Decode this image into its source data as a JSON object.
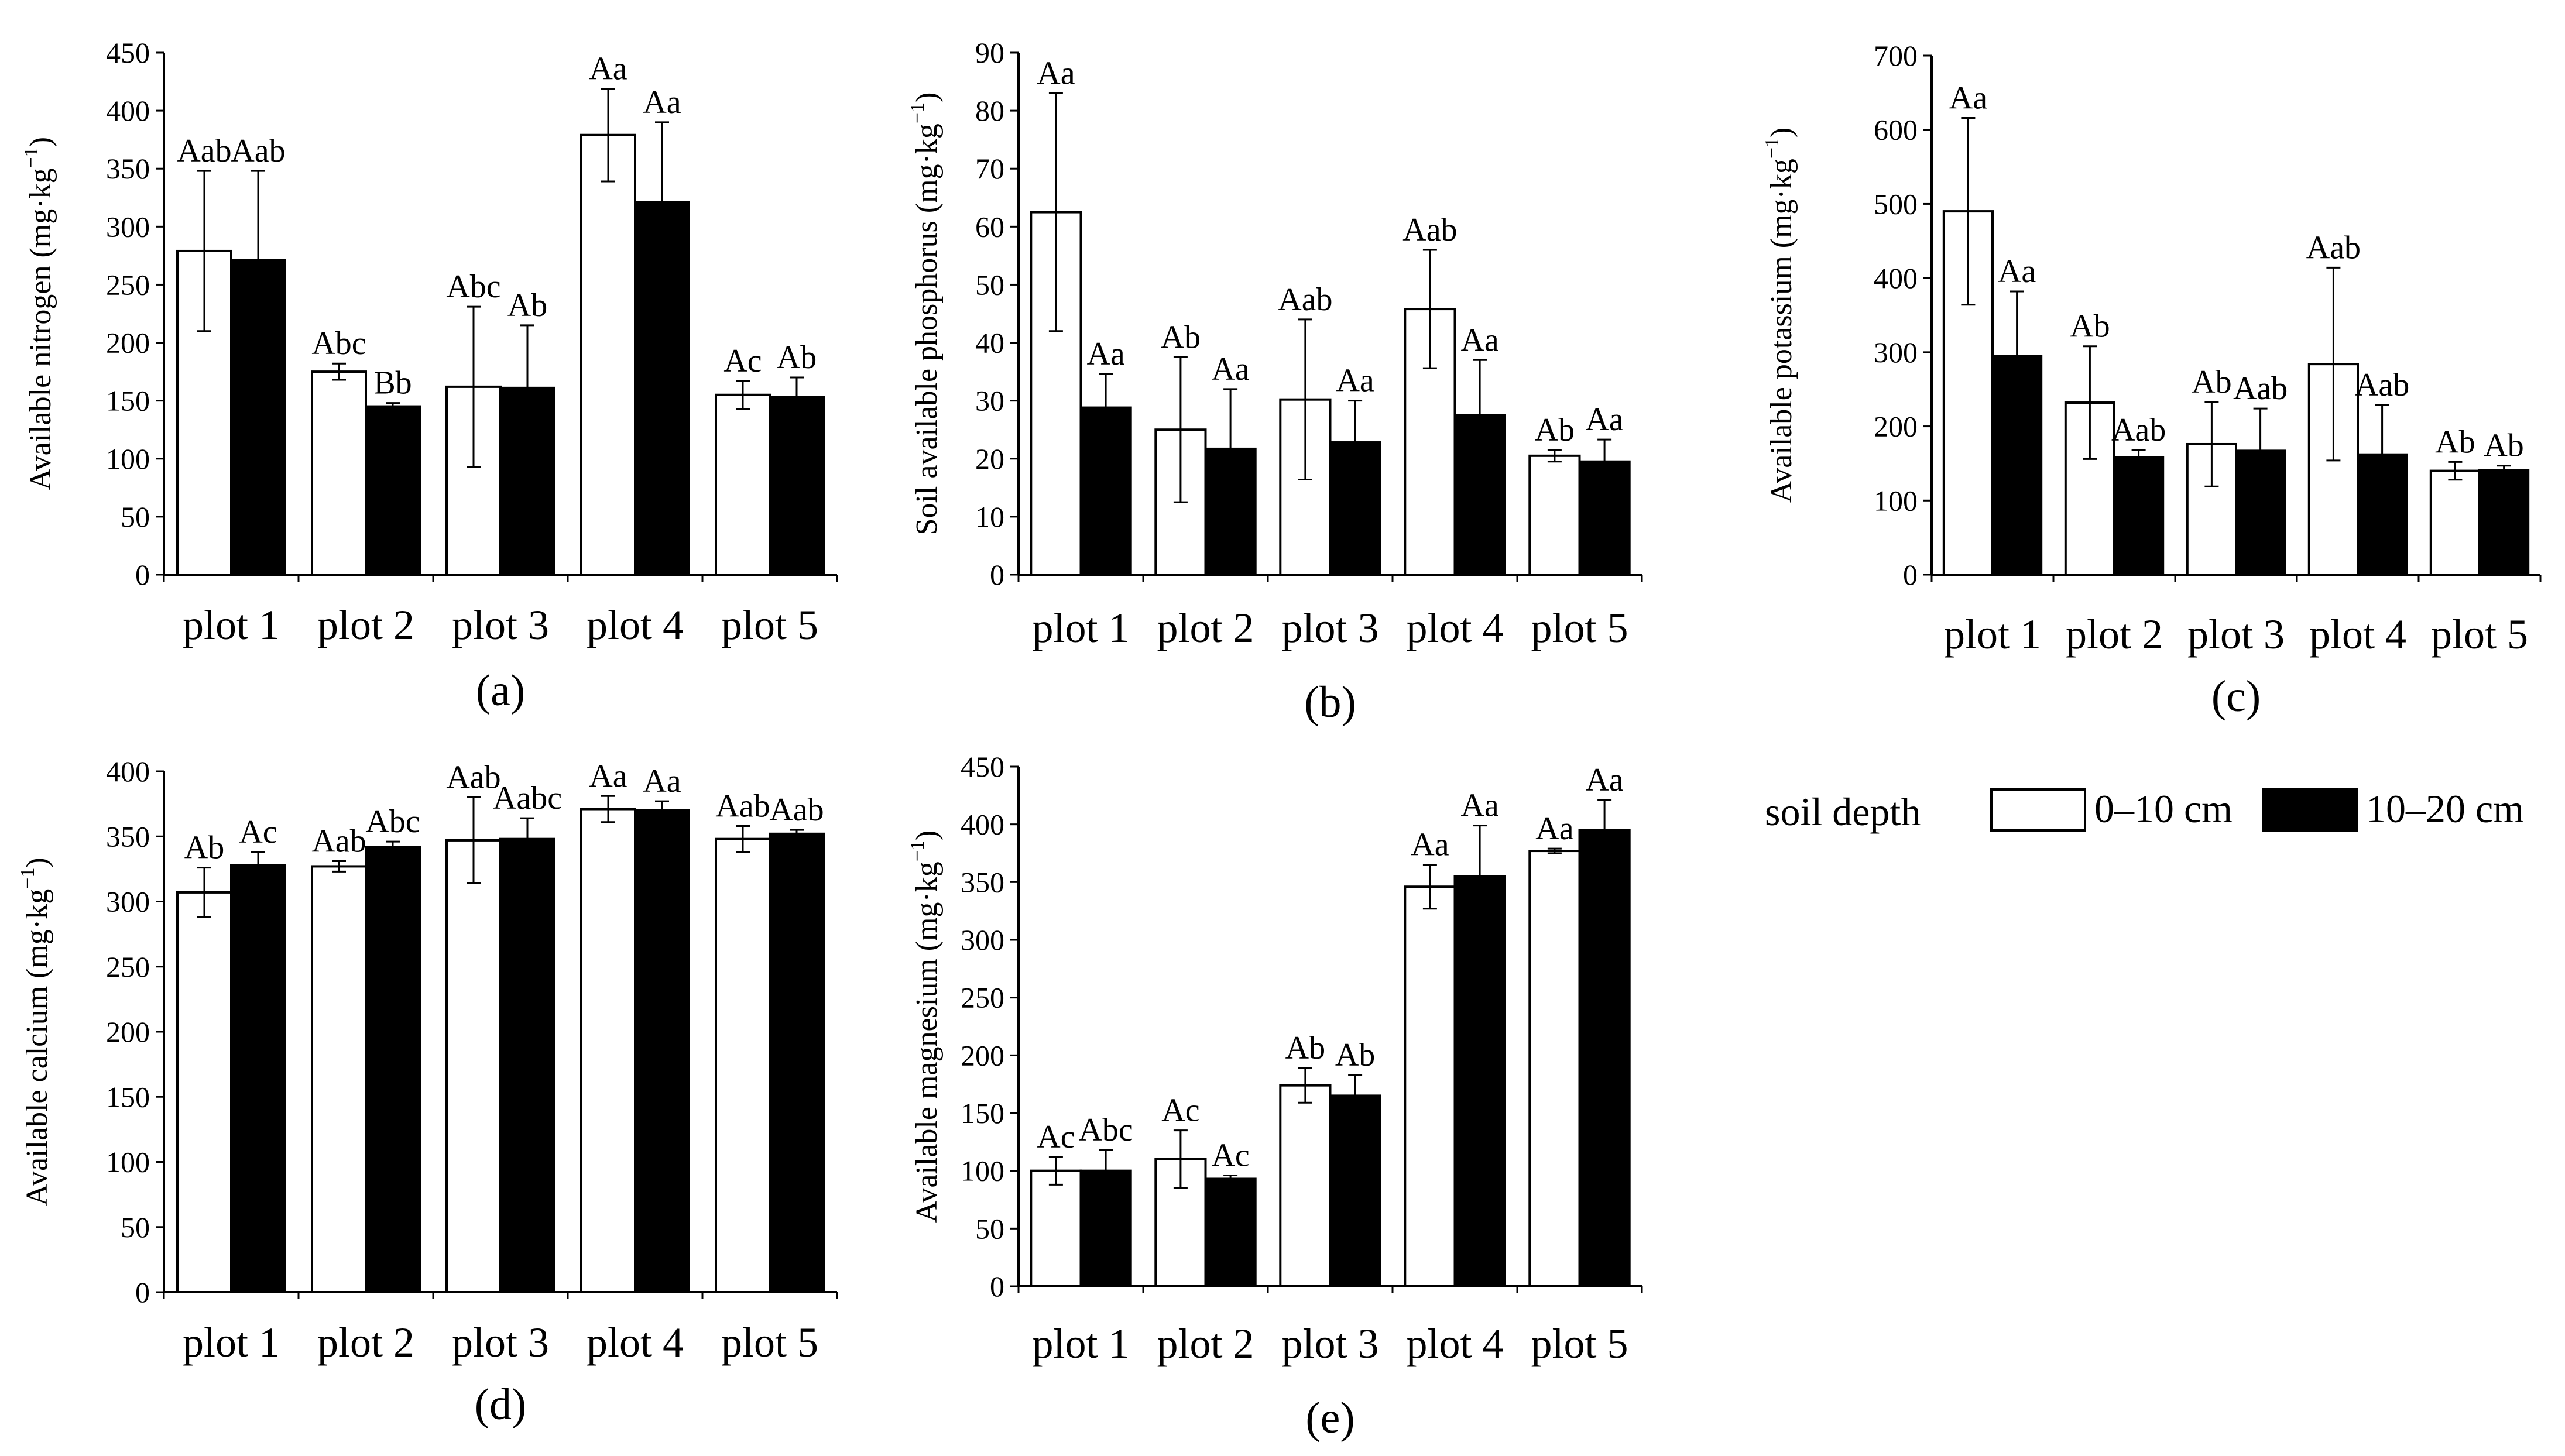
{
  "legend": {
    "title": "soil depth",
    "entries": [
      {
        "label": "0–10 cm",
        "color": "#ffffff"
      },
      {
        "label": "10–20 cm",
        "color": "#000000"
      }
    ]
  },
  "chart_data": [
    {
      "type": "bar",
      "panel": "(a)",
      "ylabel": "Available nitrogen (mg·kg",
      "ylabel_exp": "−1",
      "ylim": [
        0,
        450
      ],
      "yticks": [
        0,
        50,
        100,
        150,
        200,
        250,
        300,
        350,
        400,
        450
      ],
      "categories": [
        "plot 1",
        "plot 2",
        "plot 3",
        "plot 4",
        "plot 5"
      ],
      "series": [
        {
          "name": "0–10 cm",
          "color": "#ffffff",
          "values": [
            279,
            175,
            162,
            379,
            155
          ],
          "errors": [
            69,
            7,
            69,
            40,
            12
          ],
          "labels": [
            "Aab",
            "Abc",
            "Abc",
            "Aa",
            "Ac"
          ]
        },
        {
          "name": "10–20 cm",
          "color": "#000000",
          "values": [
            271,
            145,
            161,
            321,
            153
          ],
          "errors": [
            77,
            3,
            54,
            69,
            17
          ],
          "labels": [
            "Aab",
            "Bb",
            "Ab",
            "Aa",
            "Ab"
          ]
        }
      ]
    },
    {
      "type": "bar",
      "panel": "(b)",
      "ylabel": "Soil available phosphorus (mg·kg",
      "ylabel_exp": "−1",
      "ylim": [
        0,
        90
      ],
      "yticks": [
        0,
        10,
        20,
        30,
        40,
        50,
        60,
        70,
        80,
        90
      ],
      "categories": [
        "plot 1",
        "plot 2",
        "plot 3",
        "plot 4",
        "plot 5"
      ],
      "series": [
        {
          "name": "0–10 cm",
          "color": "#ffffff",
          "values": [
            62.5,
            25,
            30.2,
            45.8,
            20.5
          ],
          "errors": [
            20.5,
            12.5,
            13.8,
            10.2,
            1
          ],
          "labels": [
            "Aa",
            "Ab",
            "Aab",
            "Aab",
            "Ab"
          ]
        },
        {
          "name": "10–20 cm",
          "color": "#000000",
          "values": [
            28.8,
            21.7,
            22.8,
            27.5,
            19.5
          ],
          "errors": [
            5.8,
            10.3,
            7.2,
            9.5,
            3.8
          ],
          "labels": [
            "Aa",
            "Aa",
            "Aa",
            "Aa",
            "Aa"
          ]
        }
      ]
    },
    {
      "type": "bar",
      "panel": "(c)",
      "ylabel": "Available potassium (mg·kg",
      "ylabel_exp": "−1",
      "ylim": [
        0,
        700
      ],
      "yticks": [
        0,
        100,
        200,
        300,
        400,
        500,
        600,
        700
      ],
      "categories": [
        "plot 1",
        "plot 2",
        "plot 3",
        "plot 4",
        "plot 5"
      ],
      "series": [
        {
          "name": "0–10 cm",
          "color": "#ffffff",
          "values": [
            490,
            232,
            176,
            284,
            140
          ],
          "errors": [
            126,
            76,
            57,
            130,
            12
          ],
          "labels": [
            "Aa",
            "Ab",
            "Ab",
            "Aab",
            "Ab"
          ]
        },
        {
          "name": "10–20 cm",
          "color": "#000000",
          "values": [
            295,
            158,
            167,
            162,
            141
          ],
          "errors": [
            87,
            10,
            57,
            67,
            6
          ],
          "labels": [
            "Aa",
            "Aab",
            "Aab",
            "Aab",
            "Ab"
          ]
        }
      ]
    },
    {
      "type": "bar",
      "panel": "(d)",
      "ylabel": "Available calcium (mg·kg",
      "ylabel_exp": "−1",
      "ylim": [
        0,
        400
      ],
      "yticks": [
        0,
        50,
        100,
        150,
        200,
        250,
        300,
        350,
        400
      ],
      "categories": [
        "plot 1",
        "plot 2",
        "plot 3",
        "plot 4",
        "plot 5"
      ],
      "series": [
        {
          "name": "0–10 cm",
          "color": "#ffffff",
          "values": [
            307,
            327,
            347,
            371,
            348
          ],
          "errors": [
            19,
            4,
            33,
            10,
            10
          ],
          "labels": [
            "Ab",
            "Aab",
            "Aab",
            "Aa",
            "Aab"
          ]
        },
        {
          "name": "10–20 cm",
          "color": "#000000",
          "values": [
            328,
            342,
            348,
            370,
            352
          ],
          "errors": [
            10,
            4,
            16,
            7,
            3
          ],
          "labels": [
            "Ac",
            "Abc",
            "Aabc",
            "Aa",
            "Aab"
          ]
        }
      ]
    },
    {
      "type": "bar",
      "panel": "(e)",
      "ylabel": "Available magnesium (mg·kg",
      "ylabel_exp": "−1",
      "ylim": [
        0,
        450
      ],
      "yticks": [
        0,
        50,
        100,
        150,
        200,
        250,
        300,
        350,
        400,
        450
      ],
      "categories": [
        "plot 1",
        "plot 2",
        "plot 3",
        "plot 4",
        "plot 5"
      ],
      "series": [
        {
          "name": "0–10 cm",
          "color": "#ffffff",
          "values": [
            100,
            110,
            174,
            346,
            377
          ],
          "errors": [
            12,
            25,
            15,
            19,
            2
          ],
          "labels": [
            "Ac",
            "Ac",
            "Ab",
            "Aa",
            "Aa"
          ]
        },
        {
          "name": "10–20 cm",
          "color": "#000000",
          "values": [
            100,
            93,
            165,
            355,
            395
          ],
          "errors": [
            18,
            3,
            18,
            44,
            26
          ],
          "labels": [
            "Abc",
            "Ac",
            "Ab",
            "Aa",
            "Aa"
          ]
        }
      ]
    }
  ]
}
